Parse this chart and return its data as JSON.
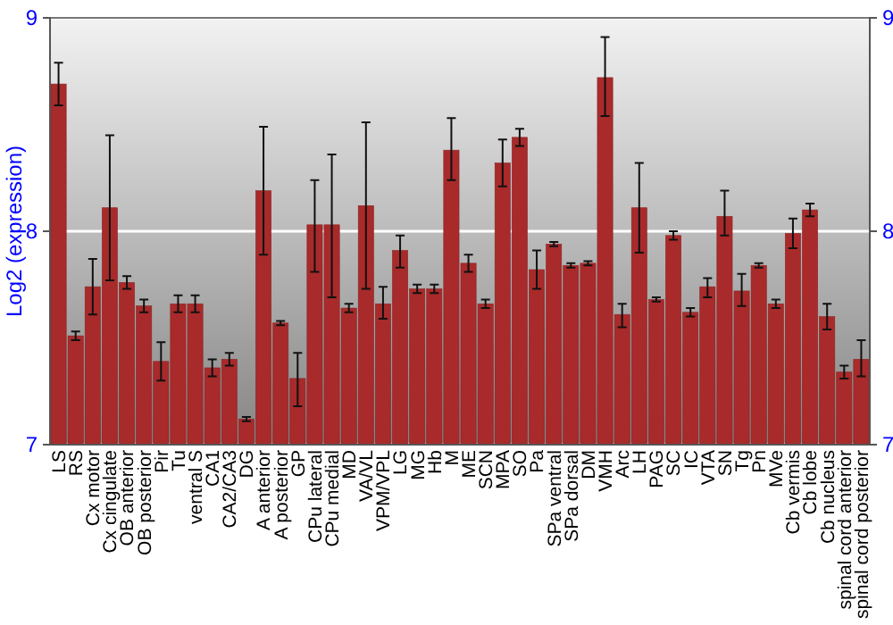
{
  "chart_data": {
    "type": "bar",
    "ylabel": "Log2 (expression)",
    "categories": [
      "LS",
      "RS",
      "Cx motor",
      "Cx cingulate",
      "OB anterior",
      "OB posterior",
      "Pir",
      "Tu",
      "ventral S",
      "CA1",
      "CA2/CA3",
      "DG",
      "A anterior",
      "A posterior",
      "GP",
      "CPu lateral",
      "CPu medial",
      "MD",
      "VA/VL",
      "VPM/VPL",
      "LG",
      "MG",
      "Hb",
      "M",
      "ME",
      "SCN",
      "MPA",
      "SO",
      "Pa",
      "SPa ventral",
      "SPa dorsal",
      "DM",
      "VMH",
      "Arc",
      "LH",
      "PAG",
      "SC",
      "IC",
      "VTA",
      "SN",
      "Tg",
      "Pn",
      "MVe",
      "Cb vermis",
      "Cb lobe",
      "Cb nucleus",
      "spinal cord anterior",
      "spinal cord posterior"
    ],
    "values": [
      8.69,
      7.51,
      7.74,
      8.11,
      7.76,
      7.65,
      7.39,
      7.66,
      7.66,
      7.36,
      7.4,
      7.12,
      8.19,
      7.57,
      7.31,
      8.03,
      8.03,
      7.64,
      8.12,
      7.66,
      7.91,
      7.73,
      7.73,
      8.38,
      7.85,
      7.66,
      8.32,
      8.44,
      7.82,
      7.94,
      7.84,
      7.85,
      8.72,
      7.61,
      8.11,
      7.68,
      7.98,
      7.62,
      7.74,
      8.07,
      7.72,
      7.84,
      7.66,
      7.99,
      8.1,
      7.6,
      7.34,
      7.4
    ],
    "errors": [
      [
        8.59,
        8.79
      ],
      0.02,
      [
        7.61,
        7.87
      ],
      [
        7.77,
        8.45
      ],
      0.03,
      0.03,
      [
        7.3,
        7.48
      ],
      0.04,
      0.04,
      0.04,
      0.03,
      0.01,
      [
        7.89,
        8.49
      ],
      0.01,
      [
        7.18,
        7.43
      ],
      [
        7.81,
        8.24
      ],
      [
        7.69,
        8.36
      ],
      0.02,
      [
        7.73,
        8.51
      ],
      [
        7.59,
        7.74
      ],
      [
        7.83,
        7.98
      ],
      0.02,
      0.02,
      [
        8.24,
        8.53
      ],
      0.04,
      0.02,
      [
        8.21,
        8.43
      ],
      0.04,
      [
        7.73,
        7.91
      ],
      0.01,
      0.01,
      0.01,
      [
        8.54,
        8.91
      ],
      [
        7.55,
        7.66
      ],
      [
        7.9,
        8.32
      ],
      0.01,
      0.02,
      0.02,
      [
        7.69,
        7.78
      ],
      [
        7.98,
        8.19
      ],
      [
        7.65,
        7.8
      ],
      0.01,
      0.02,
      [
        7.92,
        8.06
      ],
      0.03,
      [
        7.54,
        7.66
      ],
      0.03,
      [
        7.32,
        7.49
      ]
    ],
    "color": "#a82a2a",
    "ylim": [
      7,
      9
    ],
    "yticks": [
      7,
      8,
      9
    ],
    "y2lim": [
      7,
      9
    ],
    "y2ticks": [
      7,
      8,
      9
    ],
    "grid": "y"
  }
}
